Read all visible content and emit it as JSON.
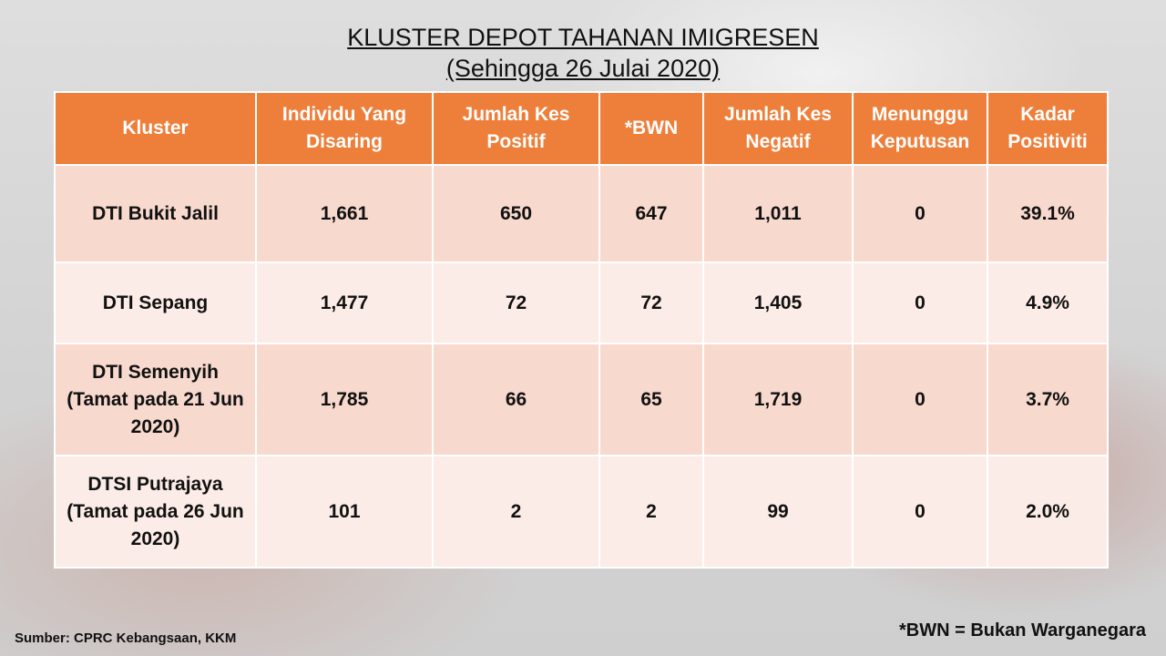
{
  "title": {
    "line1": "KLUSTER DEPOT TAHANAN IMIGRESEN",
    "line2": "(Sehingga 26 Julai 2020)"
  },
  "table": {
    "headers": [
      "Kluster",
      "Individu Yang Disaring",
      "Jumlah Kes Positif",
      "*BWN",
      "Jumlah Kes Negatif",
      "Menunggu Keputusan",
      "Kadar Positiviti"
    ],
    "rows": [
      [
        "DTI Bukit Jalil",
        "1,661",
        "650",
        "647",
        "1,011",
        "0",
        "39.1%"
      ],
      [
        "DTI Sepang",
        "1,477",
        "72",
        "72",
        "1,405",
        "0",
        "4.9%"
      ],
      [
        "DTI Semenyih (Tamat pada 21 Jun 2020)",
        "1,785",
        "66",
        "65",
        "1,719",
        "0",
        "3.7%"
      ],
      [
        "DTSI Putrajaya (Tamat pada 26 Jun 2020)",
        "101",
        "2",
        "2",
        "99",
        "0",
        "2.0%"
      ]
    ]
  },
  "footer": {
    "source": "Sumber: CPRC Kebangsaan, KKM",
    "note": "*BWN = Bukan Warganegara"
  }
}
